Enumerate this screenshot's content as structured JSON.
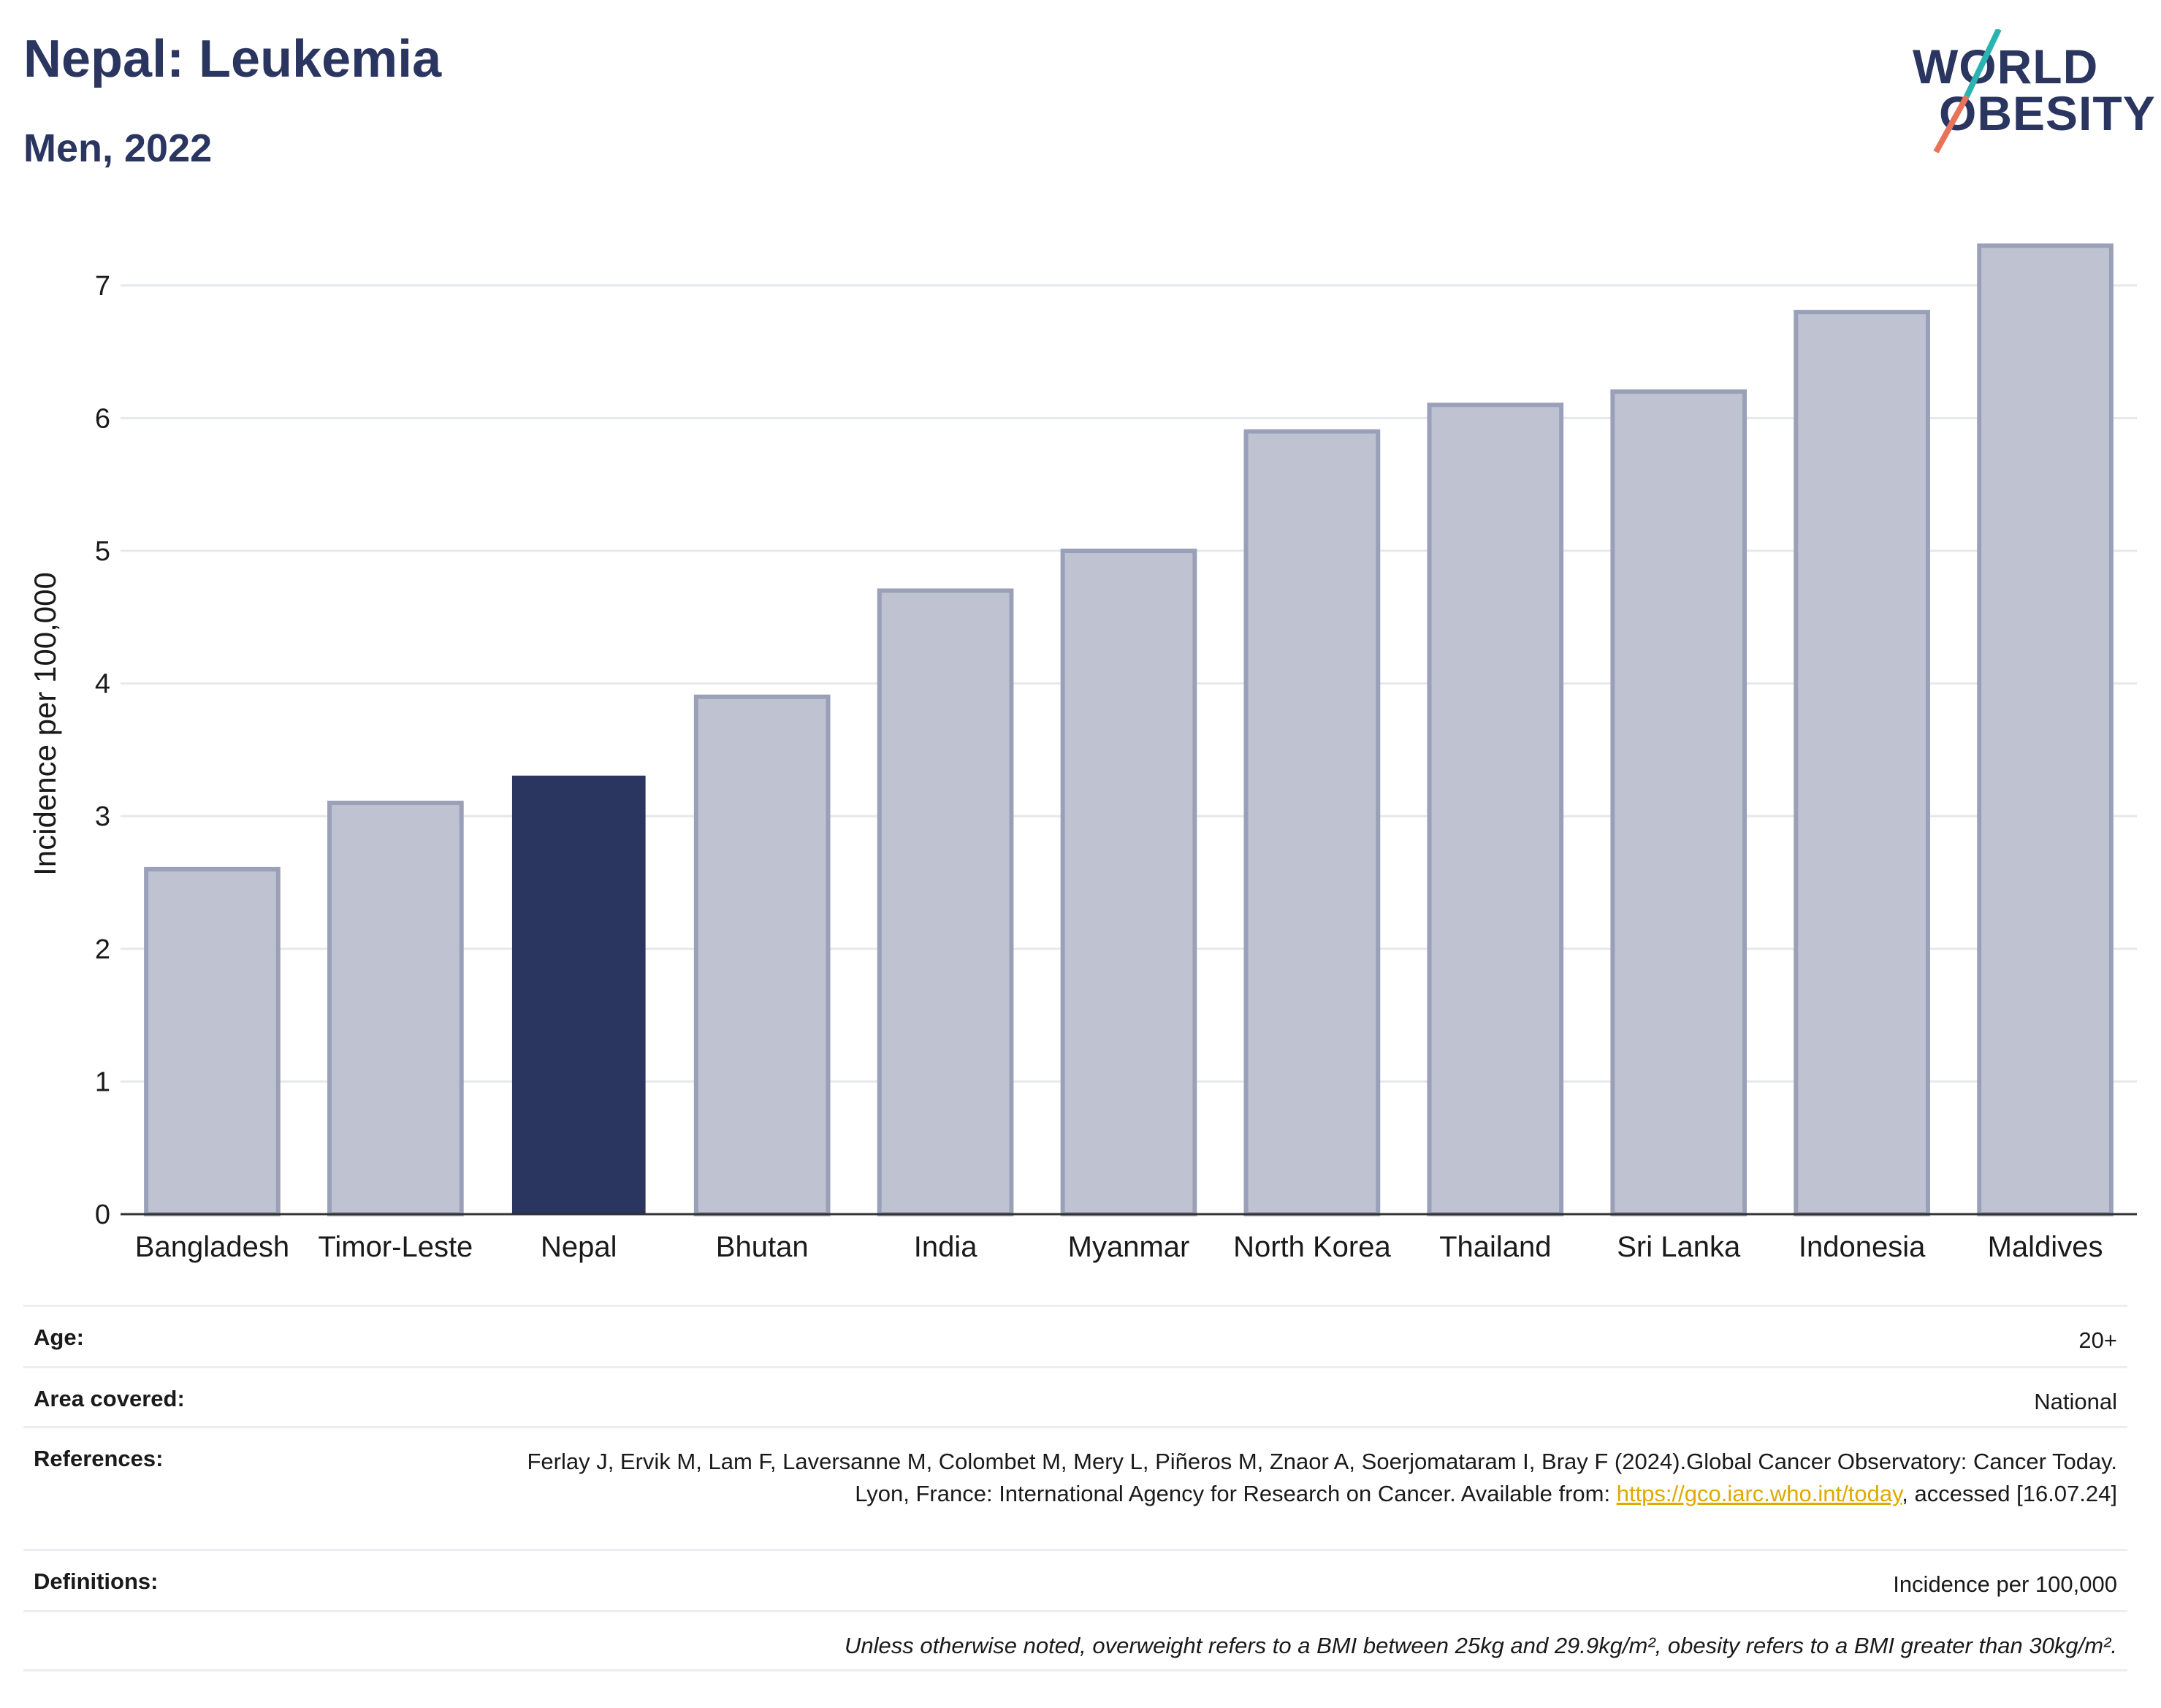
{
  "header": {
    "title": "Nepal: Leukemia",
    "subtitle": "Men, 2022"
  },
  "logo": {
    "line1": "WORLD",
    "line2": "OBESITY",
    "colors": {
      "text": "#2a3560",
      "slash_teal": "#2bb3b1",
      "slash_coral": "#e8735a"
    }
  },
  "chart_data": {
    "type": "bar",
    "categories": [
      "Bangladesh",
      "Timor-Leste",
      "Nepal",
      "Bhutan",
      "India",
      "Myanmar",
      "North Korea",
      "Thailand",
      "Sri Lanka",
      "Indonesia",
      "Maldives"
    ],
    "values": [
      2.6,
      3.1,
      3.3,
      3.9,
      4.7,
      5.0,
      5.9,
      6.1,
      6.2,
      6.8,
      7.3
    ],
    "highlight": "Nepal",
    "ylabel": "Incidence per 100,000",
    "xlabel": "",
    "ylim": [
      0,
      7.5
    ],
    "yticks": [
      0,
      1,
      2,
      3,
      4,
      5,
      6,
      7
    ],
    "grid": true,
    "colors": {
      "highlight": "#2a3560",
      "default_fill": "#bfc3d1",
      "default_border": "#9aa0b8"
    }
  },
  "meta": {
    "age_label": "Age:",
    "age_value": "20+",
    "area_label": "Area covered:",
    "area_value": "National",
    "ref_label": "References:",
    "ref_text_1": "Ferlay J, Ervik M, Lam F, Laversanne M, Colombet M, Mery L, Piñeros M, Znaor A, Soerjomataram I, Bray F (2024).Global Cancer Observatory: Cancer Today. Lyon, France: International Agency for Research on Cancer. Available from: ",
    "ref_link": "https://gco.iarc.who.int/today",
    "ref_text_2": ", accessed [16.07.24]",
    "def_label": "Definitions:",
    "def_value": "Incidence per 100,000",
    "note": "Unless otherwise noted, overweight refers to a BMI between 25kg and 29.9kg/m², obesity refers to a BMI greater than 30kg/m²."
  }
}
